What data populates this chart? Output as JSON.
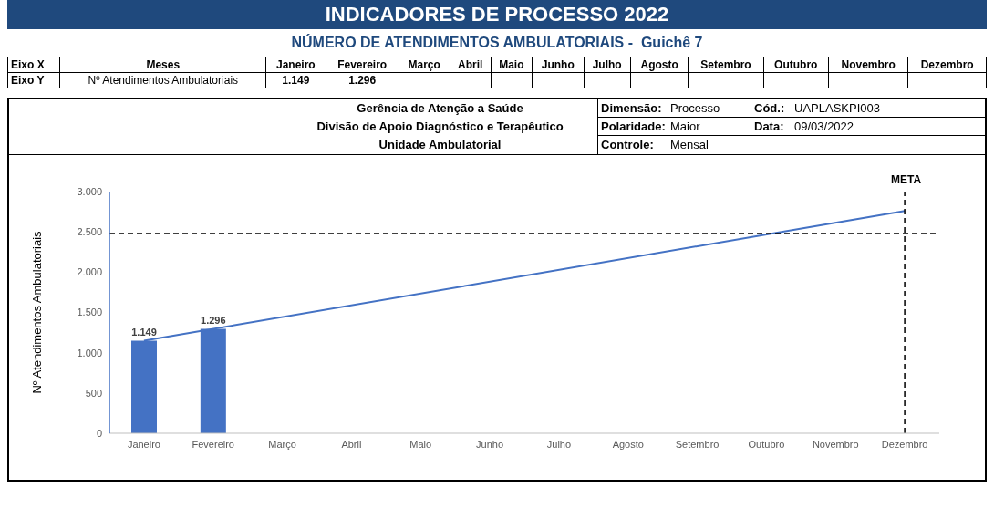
{
  "chart_data": {
    "type": "bar",
    "title": "INDICADORES DE PROCESSO 2022",
    "subtitle": "NÚMERO DE ATENDIMENTOS AMBULATORIAIS -  Guichê 7",
    "ylabel": "Nº Atendimentos Ambulatoriais",
    "categories": [
      "Janeiro",
      "Fevereiro",
      "Março",
      "Abril",
      "Maio",
      "Junho",
      "Julho",
      "Agosto",
      "Setembro",
      "Outubro",
      "Novembro",
      "Dezembro"
    ],
    "series": [
      {
        "color": "#4472c4",
        "values": [
          1149,
          1296,
          null,
          null,
          null,
          null,
          null,
          null,
          null,
          null,
          null,
          null
        ],
        "value_labels": [
          "1.149",
          "1.296",
          null,
          null,
          null,
          null,
          null,
          null,
          null,
          null,
          null,
          null
        ]
      },
      {
        "type": "line",
        "color": "#4472c4",
        "values": [
          1150,
          null,
          null,
          null,
          null,
          null,
          null,
          null,
          null,
          null,
          null,
          2760
        ]
      }
    ],
    "ylim": [
      0,
      3000
    ],
    "yticks": [
      {
        "value": 0,
        "label": "0"
      },
      {
        "value": 500,
        "label": "500"
      },
      {
        "value": 1000,
        "label": "1.000"
      },
      {
        "value": 1500,
        "label": "1.500"
      },
      {
        "value": 2000,
        "label": "2.000"
      },
      {
        "value": 2500,
        "label": "2.500"
      },
      {
        "value": 3000,
        "label": "3.000"
      }
    ],
    "grid": false,
    "legend": false,
    "ref_lines": [
      {
        "axis": "y",
        "value": 2480,
        "line_style": "dashed",
        "color": "#000000"
      },
      {
        "axis": "x",
        "value": "Dezembro",
        "label": "META",
        "line_style": "dashed",
        "color": "#000000"
      }
    ],
    "annotations": [
      "Eixo X",
      "Meses",
      "Eixo Y",
      "Gerência de Atenção a Saúde",
      "Divisão de Apoio Diagnóstico e Terapêutico",
      "Unidade Ambulatorial",
      "Dimensão:",
      "Processo",
      "Cód.:",
      "UAPLASKPI003",
      "Polaridade:",
      "Maior",
      "Data:",
      "09/03/2022",
      "Controle:",
      "Mensal"
    ]
  }
}
